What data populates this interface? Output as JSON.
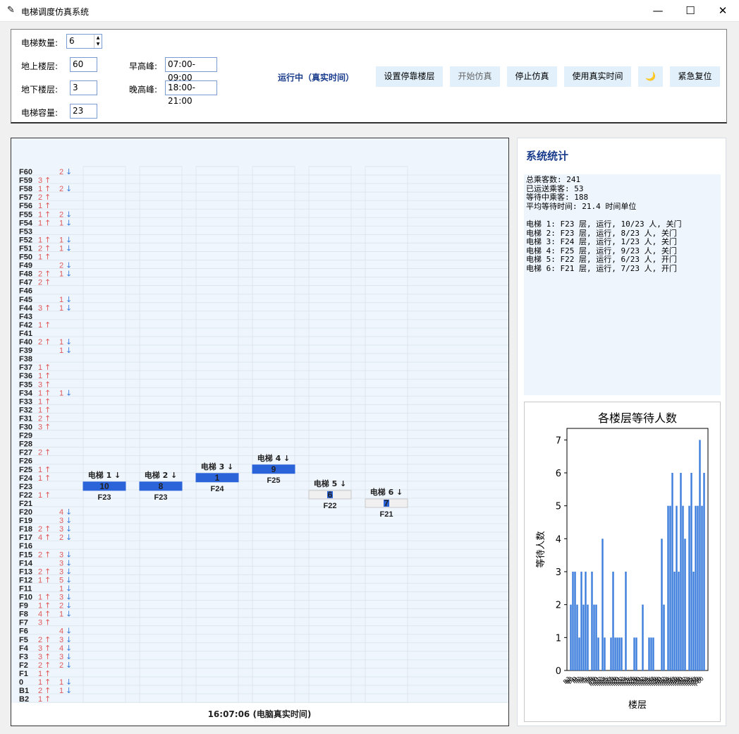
{
  "window": {
    "title": "电梯调度仿真系统",
    "minimize": "—",
    "maximize": "☐",
    "close": "✕"
  },
  "controls": {
    "elevator_count": {
      "label": "电梯数量:",
      "value": "6"
    },
    "above_floors": {
      "label": "地上楼层:",
      "value": "60"
    },
    "below_floors": {
      "label": "地下楼层:",
      "value": "3"
    },
    "capacity": {
      "label": "电梯容量:",
      "value": "23"
    },
    "morning_peak": {
      "label": "早高峰:",
      "value": "07:00-09:00"
    },
    "evening_peak": {
      "label": "晚高峰:",
      "value": "18:00-21:00"
    },
    "status": "运行中（真实时间）",
    "buttons": {
      "set_stops": "设置停靠楼层",
      "start": "开始仿真",
      "stop": "停止仿真",
      "real_time": "使用真实时间",
      "theme": "🌙",
      "reset": "紧急复位"
    }
  },
  "building": {
    "clock": "16:07:06 (电脑真实时间)",
    "floors": [
      {
        "f": "F60",
        "up": 0,
        "down": 2
      },
      {
        "f": "F59",
        "up": 3,
        "down": 0
      },
      {
        "f": "F58",
        "up": 1,
        "down": 2
      },
      {
        "f": "F57",
        "up": 2,
        "down": 0
      },
      {
        "f": "F56",
        "up": 1,
        "down": 0
      },
      {
        "f": "F55",
        "up": 1,
        "down": 2
      },
      {
        "f": "F54",
        "up": 1,
        "down": 1
      },
      {
        "f": "F53",
        "up": 0,
        "down": 0
      },
      {
        "f": "F52",
        "up": 1,
        "down": 1
      },
      {
        "f": "F51",
        "up": 2,
        "down": 1
      },
      {
        "f": "F50",
        "up": 1,
        "down": 0
      },
      {
        "f": "F49",
        "up": 0,
        "down": 2
      },
      {
        "f": "F48",
        "up": 2,
        "down": 1
      },
      {
        "f": "F47",
        "up": 2,
        "down": 0
      },
      {
        "f": "F46",
        "up": 0,
        "down": 0
      },
      {
        "f": "F45",
        "up": 0,
        "down": 1
      },
      {
        "f": "F44",
        "up": 3,
        "down": 1
      },
      {
        "f": "F43",
        "up": 0,
        "down": 0
      },
      {
        "f": "F42",
        "up": 1,
        "down": 0
      },
      {
        "f": "F41",
        "up": 0,
        "down": 0
      },
      {
        "f": "F40",
        "up": 2,
        "down": 1
      },
      {
        "f": "F39",
        "up": 0,
        "down": 1
      },
      {
        "f": "F38",
        "up": 0,
        "down": 0
      },
      {
        "f": "F37",
        "up": 1,
        "down": 0
      },
      {
        "f": "F36",
        "up": 1,
        "down": 0
      },
      {
        "f": "F35",
        "up": 3,
        "down": 0
      },
      {
        "f": "F34",
        "up": 1,
        "down": 1
      },
      {
        "f": "F33",
        "up": 1,
        "down": 0
      },
      {
        "f": "F32",
        "up": 1,
        "down": 0
      },
      {
        "f": "F31",
        "up": 2,
        "down": 0
      },
      {
        "f": "F30",
        "up": 3,
        "down": 0
      },
      {
        "f": "F29",
        "up": 0,
        "down": 0
      },
      {
        "f": "F28",
        "up": 0,
        "down": 0
      },
      {
        "f": "F27",
        "up": 2,
        "down": 0
      },
      {
        "f": "F26",
        "up": 0,
        "down": 0
      },
      {
        "f": "F25",
        "up": 1,
        "down": 0
      },
      {
        "f": "F24",
        "up": 1,
        "down": 0
      },
      {
        "f": "F23",
        "up": 0,
        "down": 0
      },
      {
        "f": "F22",
        "up": 1,
        "down": 0
      },
      {
        "f": "F21",
        "up": 0,
        "down": 0
      },
      {
        "f": "F20",
        "up": 0,
        "down": 4
      },
      {
        "f": "F19",
        "up": 0,
        "down": 3
      },
      {
        "f": "F18",
        "up": 2,
        "down": 3
      },
      {
        "f": "F17",
        "up": 4,
        "down": 2
      },
      {
        "f": "F16",
        "up": 0,
        "down": 0
      },
      {
        "f": "F15",
        "up": 2,
        "down": 3
      },
      {
        "f": "F14",
        "up": 0,
        "down": 3
      },
      {
        "f": "F13",
        "up": 2,
        "down": 3
      },
      {
        "f": "F12",
        "up": 1,
        "down": 5
      },
      {
        "f": "F11",
        "up": 0,
        "down": 1
      },
      {
        "f": "F10",
        "up": 1,
        "down": 3
      },
      {
        "f": "F9",
        "up": 1,
        "down": 2
      },
      {
        "f": "F8",
        "up": 4,
        "down": 1
      },
      {
        "f": "F7",
        "up": 3,
        "down": 0
      },
      {
        "f": "F6",
        "up": 0,
        "down": 4
      },
      {
        "f": "F5",
        "up": 2,
        "down": 3
      },
      {
        "f": "F4",
        "up": 3,
        "down": 4
      },
      {
        "f": "F3",
        "up": 3,
        "down": 3
      },
      {
        "f": "F2",
        "up": 2,
        "down": 2
      },
      {
        "f": "F1",
        "up": 1,
        "down": 0
      },
      {
        "f": "0",
        "up": 1,
        "down": 1
      },
      {
        "f": "B1",
        "up": 2,
        "down": 1
      },
      {
        "f": "B2",
        "up": 1,
        "down": 0
      }
    ],
    "elevators": [
      {
        "name": "电梯 1",
        "dir": "↓",
        "floor": "F23",
        "load": "10",
        "fill": 0.43,
        "door": "关门"
      },
      {
        "name": "电梯 2",
        "dir": "↓",
        "floor": "F23",
        "load": "8",
        "fill": 0.35,
        "door": "关门"
      },
      {
        "name": "电梯 3",
        "dir": "↓",
        "floor": "F24",
        "load": "1",
        "fill": 0.04,
        "door": "关门"
      },
      {
        "name": "电梯 4",
        "dir": "↓",
        "floor": "F25",
        "load": "9",
        "fill": 0.39,
        "door": "关门"
      },
      {
        "name": "电梯 5",
        "dir": "↓",
        "floor": "F22",
        "load": "6",
        "fill": 0.26,
        "door": "开门"
      },
      {
        "name": "电梯 6",
        "dir": "↓",
        "floor": "F21",
        "load": "7",
        "fill": 0.3,
        "door": "开门"
      }
    ]
  },
  "stats": {
    "title": "系统统计",
    "lines": [
      "总乘客数: 241",
      "已运送乘客: 53",
      "等待中乘客: 188",
      "平均等待时间: 21.4 时间单位",
      "",
      "电梯 1: F23 层, 运行, 10/23 人, 关门",
      "电梯 2: F23 层, 运行, 8/23 人, 关门",
      "电梯 3: F24 层, 运行, 1/23 人, 关门",
      "电梯 4: F25 层, 运行, 9/23 人, 关门",
      "电梯 5: F22 层, 运行, 6/23 人, 开门",
      "电梯 6: F21 层, 运行, 7/23 人, 开门"
    ]
  },
  "chart_data": {
    "type": "bar",
    "title": "各楼层等待人数",
    "xlabel": "楼层",
    "ylabel": "等待人数",
    "ylim": [
      0,
      7.35
    ],
    "yticks": [
      0,
      1,
      2,
      3,
      4,
      5,
      6,
      7
    ],
    "color": "#3b7ddd",
    "categories": [
      "B3",
      "B2",
      "B1",
      "0",
      "F1",
      "F2",
      "F3",
      "F4",
      "F5",
      "F6",
      "F7",
      "F8",
      "F9",
      "F10",
      "F11",
      "F12",
      "F13",
      "F14",
      "F15",
      "F16",
      "F17",
      "F18",
      "F19",
      "F20",
      "F21",
      "F22",
      "F23",
      "F24",
      "F25",
      "F26",
      "F27",
      "F28",
      "F29",
      "F30",
      "F31",
      "F32",
      "F33",
      "F34",
      "F35",
      "F36",
      "F37",
      "F38",
      "F39",
      "F40",
      "F41",
      "F42",
      "F43",
      "F44",
      "F45",
      "F46",
      "F47",
      "F48",
      "F49",
      "F50",
      "F51",
      "F52",
      "F53",
      "F54",
      "F55",
      "F56",
      "F57",
      "F58",
      "F59",
      "F60"
    ],
    "values": [
      2,
      3,
      3,
      2,
      1,
      3,
      2,
      3,
      2,
      0,
      3,
      2,
      2,
      1,
      0,
      4,
      1,
      0,
      0,
      1,
      3,
      1,
      1,
      1,
      1,
      0,
      3,
      0,
      0,
      0,
      1,
      1,
      0,
      0,
      2,
      0,
      0,
      1,
      1,
      1,
      0,
      0,
      0,
      4,
      2,
      0,
      5,
      5,
      6,
      3,
      5,
      3,
      6,
      5,
      4,
      0,
      5,
      6,
      3,
      5,
      5,
      7,
      5,
      6
    ]
  }
}
